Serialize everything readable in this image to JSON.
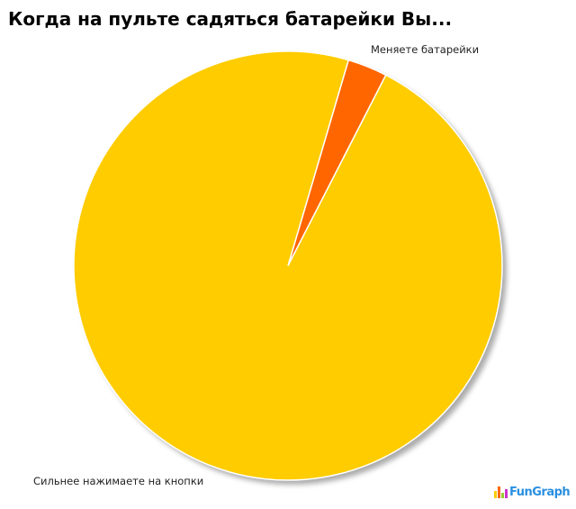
{
  "chart_data": {
    "type": "pie",
    "title": "Когда на пульте садяться батарейки Вы...",
    "slices": [
      {
        "label": "Меняете батарейки",
        "value": 3,
        "color": "#FF6600"
      },
      {
        "label": "Сильнее нажимаете на кнопки",
        "value": 97,
        "color": "#FFCC00"
      }
    ],
    "legend": "none"
  },
  "watermark": "FunGraph"
}
